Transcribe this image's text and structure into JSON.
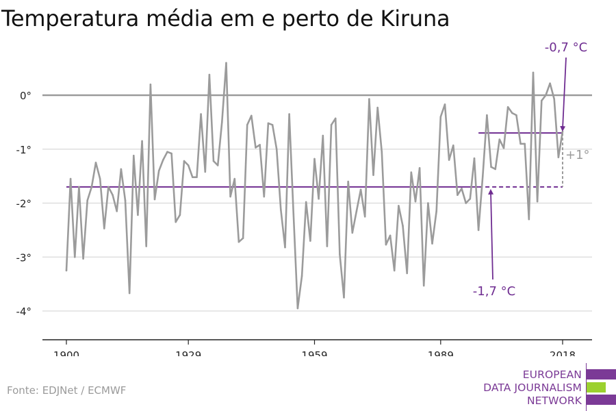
{
  "colors": {
    "series": "#9b9b9b",
    "accent": "#6f2d91",
    "axis": "#222222",
    "grid": "#d9d9d9",
    "zero": "#9b9b9b",
    "logo_purple": "#7b3a96",
    "logo_green": "#9bd12e"
  },
  "source": "Fonte: EDJNet / ECMWF",
  "logo": {
    "lines": [
      "EUROPEAN",
      "DATA JOURNALISM",
      "NETWORK"
    ]
  },
  "chart_data": {
    "type": "line",
    "title": "Temperatura média em e perto de Kiruna",
    "xlabel": "",
    "ylabel": "",
    "xlim": [
      1900,
      2018
    ],
    "ylim": [
      -4.5,
      0.8
    ],
    "x_ticks": [
      1900,
      1929,
      1959,
      1989,
      2018
    ],
    "y_ticks": [
      {
        "value": 0,
        "label": "0°"
      },
      {
        "value": -1,
        "label": "-1°"
      },
      {
        "value": -2,
        "label": "-2°"
      },
      {
        "value": -3,
        "label": "-3°"
      },
      {
        "value": -4,
        "label": "-4°"
      }
    ],
    "grid": true,
    "series": [
      {
        "x": [
          1900,
          1901,
          1902,
          1903,
          1904,
          1905,
          1906,
          1907,
          1908,
          1909,
          1910,
          1911,
          1912,
          1913,
          1914,
          1915,
          1916,
          1917,
          1918,
          1919,
          1920,
          1921,
          1922,
          1923,
          1924,
          1925,
          1926,
          1927,
          1928,
          1929,
          1930,
          1931,
          1932,
          1933,
          1934,
          1935,
          1936,
          1937,
          1938,
          1939,
          1940,
          1941,
          1942,
          1943,
          1944,
          1945,
          1946,
          1947,
          1948,
          1949,
          1950,
          1951,
          1952,
          1953,
          1954,
          1955,
          1956,
          1957,
          1958,
          1959,
          1960,
          1961,
          1962,
          1963,
          1964,
          1965,
          1966,
          1967,
          1968,
          1969,
          1970,
          1971,
          1972,
          1973,
          1974,
          1975,
          1976,
          1977,
          1978,
          1979,
          1980,
          1981,
          1982,
          1983,
          1984,
          1985,
          1986,
          1987,
          1988,
          1989,
          1990,
          1991,
          1992,
          1993,
          1994,
          1995,
          1996,
          1997,
          1998,
          1999,
          2000,
          2001,
          2002,
          2003,
          2004,
          2005,
          2006,
          2007,
          2008,
          2009,
          2010,
          2011,
          2012,
          2013,
          2014,
          2015,
          2016,
          2017,
          2018
        ],
        "values": [
          -3.25,
          -1.55,
          -3.0,
          -1.7,
          -3.03,
          -1.95,
          -1.7,
          -1.25,
          -1.55,
          -2.47,
          -1.7,
          -1.85,
          -2.15,
          -1.37,
          -1.95,
          -3.67,
          -1.12,
          -2.22,
          -0.85,
          -2.8,
          0.2,
          -1.93,
          -1.4,
          -1.2,
          -1.05,
          -1.08,
          -2.35,
          -2.22,
          -1.22,
          -1.3,
          -1.52,
          -1.52,
          -0.35,
          -1.42,
          0.38,
          -1.22,
          -1.3,
          -0.5,
          0.6,
          -1.88,
          -1.55,
          -2.72,
          -2.65,
          -0.55,
          -0.38,
          -0.97,
          -0.92,
          -1.88,
          -0.52,
          -0.55,
          -1.0,
          -2.12,
          -2.82,
          -0.35,
          -2.2,
          -3.95,
          -3.35,
          -1.98,
          -2.7,
          -1.18,
          -1.92,
          -0.75,
          -2.8,
          -0.55,
          -0.43,
          -2.95,
          -3.75,
          -1.6,
          -2.55,
          -2.15,
          -1.75,
          -2.25,
          -0.07,
          -1.48,
          -0.23,
          -1.05,
          -2.77,
          -2.6,
          -3.25,
          -2.05,
          -2.42,
          -3.3,
          -1.43,
          -1.97,
          -1.35,
          -3.53,
          -2.0,
          -2.75,
          -2.15,
          -0.4,
          -0.17,
          -1.2,
          -0.93,
          -1.85,
          -1.73,
          -2.0,
          -1.92,
          -1.17,
          -2.5,
          -1.5,
          -0.37,
          -1.33,
          -1.37,
          -0.82,
          -0.98,
          -0.22,
          -0.33,
          -0.37,
          -0.9,
          -0.9,
          -2.3,
          0.42,
          -1.97,
          -0.1,
          0.0,
          0.22,
          -0.07,
          -1.15,
          -0.67
        ]
      }
    ],
    "reference_lines": [
      {
        "y": -1.7,
        "x_from": 1900,
        "x_to": 2018,
        "solid_until": 1998
      },
      {
        "y": -0.7,
        "x_from": 1998,
        "x_to": 2018
      }
    ],
    "annotations": {
      "low_label": "-1,7 °C",
      "high_label": "-0,7 °C",
      "diff_label": "+1°"
    }
  }
}
